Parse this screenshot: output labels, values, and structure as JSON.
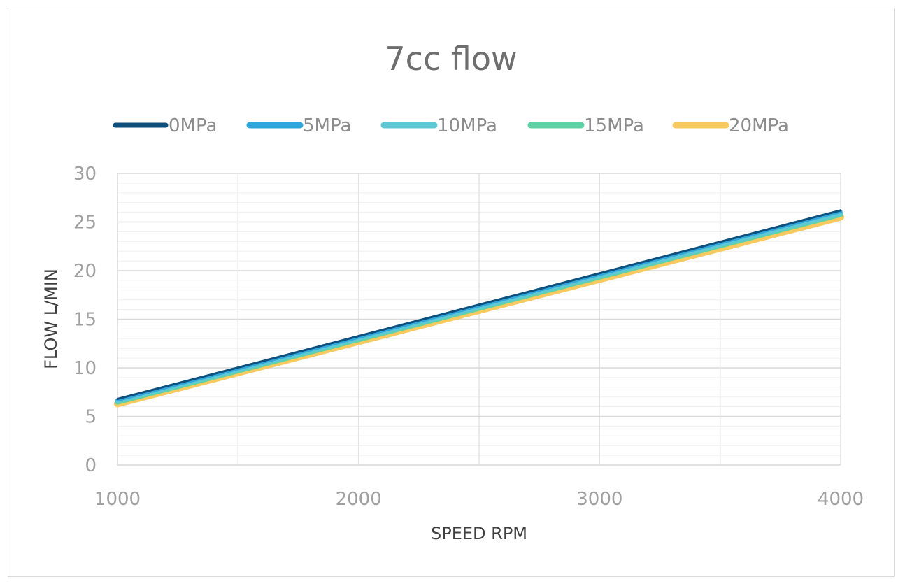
{
  "chart_data": {
    "type": "line",
    "title": "7cc flow",
    "xlabel": "SPEED RPM",
    "ylabel": "FLOW L/MIN",
    "xlim": [
      1000,
      4000
    ],
    "ylim": [
      0,
      30
    ],
    "x_ticks": [
      1000,
      2000,
      3000,
      4000
    ],
    "y_ticks": [
      0,
      5,
      10,
      15,
      20,
      25,
      30
    ],
    "grid": true,
    "legend_position": "top",
    "series": [
      {
        "name": "0MPa",
        "color": "#0e4f7c",
        "x": [
          1000,
          4000
        ],
        "y": [
          6.8,
          26.2
        ]
      },
      {
        "name": "5MPa",
        "color": "#2fa6dc",
        "x": [
          1000,
          4000
        ],
        "y": [
          6.7,
          26.1
        ]
      },
      {
        "name": "10MPa",
        "color": "#5ec9d5",
        "x": [
          1000,
          4000
        ],
        "y": [
          6.6,
          25.9
        ]
      },
      {
        "name": "15MPa",
        "color": "#5fd3a6",
        "x": [
          1000,
          4000
        ],
        "y": [
          6.5,
          25.8
        ]
      },
      {
        "name": "20MPa",
        "color": "#f8c95e",
        "x": [
          1000,
          4000
        ],
        "y": [
          6.3,
          25.5
        ]
      }
    ]
  }
}
